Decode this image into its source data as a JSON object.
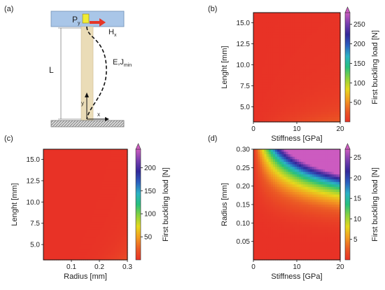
{
  "colormap": [
    "#e83226",
    "#eb5a25",
    "#f39a21",
    "#e6d81d",
    "#8cd23c",
    "#27c07c",
    "#2bb2c4",
    "#2b5fbf",
    "#33289a",
    "#7a3fb0",
    "#cc5bc0"
  ],
  "panel_a": {
    "label": "(a)",
    "force_p": "P",
    "force_p_sub": "y",
    "force_h": "H",
    "force_h_sub": "x",
    "length": "L",
    "modulus": "E,J",
    "modulus_sub": "min",
    "axis_y": "y",
    "axis_x": "x"
  },
  "chart_data": [
    {
      "id": "b",
      "panel_label": "(b)",
      "type": "heatmap",
      "xlabel": "Stiffness [GPa]",
      "ylabel": "Lenght [mm]",
      "colorbar_label": "First buckling load [N]",
      "xlim": [
        0,
        20
      ],
      "ylim": [
        3.2,
        16.2
      ],
      "xticks": [
        "0",
        "10",
        "20"
      ],
      "xtick_values": [
        0,
        10,
        20
      ],
      "yticks": [
        "5.0",
        "7.5",
        "10.0",
        "12.5",
        "15.0"
      ],
      "ytick_values": [
        5,
        7.5,
        10,
        12.5,
        15
      ],
      "cbar_ticks": [
        "50",
        "100",
        "150",
        "200",
        "250"
      ],
      "cbar_tick_values": [
        50,
        100,
        150,
        200,
        250
      ],
      "cbar_range": [
        0,
        280
      ],
      "model": "load = 14.4 * stiffness / length^2 (cap 280)"
    },
    {
      "id": "c",
      "panel_label": "(c)",
      "type": "heatmap",
      "xlabel": "Radius [mm]",
      "ylabel": "Lenght [mm]",
      "colorbar_label": "First buckling load [N]",
      "xlim": [
        0,
        0.3
      ],
      "ylim": [
        3.2,
        16.2
      ],
      "xticks": [
        "0.1",
        "0.2",
        "0.3"
      ],
      "xtick_values": [
        0.1,
        0.2,
        0.3
      ],
      "yticks": [
        "5.0",
        "7.5",
        "10.0",
        "12.5",
        "15.0"
      ],
      "ytick_values": [
        5,
        7.5,
        10,
        12.5,
        15
      ],
      "cbar_ticks": [
        "50",
        "100",
        "150",
        "200"
      ],
      "cbar_tick_values": [
        50,
        100,
        150,
        200
      ],
      "cbar_range": [
        0,
        240
      ],
      "model": "load = 22000 * radius^4 / length^2 (cap 240)"
    },
    {
      "id": "d",
      "panel_label": "(d)",
      "type": "heatmap",
      "xlabel": "Stiffness [GPa]",
      "ylabel": "Radius [mm]",
      "colorbar_label": "First buckling load [N]",
      "xlim": [
        0,
        20
      ],
      "ylim": [
        0,
        0.3
      ],
      "xticks": [
        "0",
        "10",
        "20"
      ],
      "xtick_values": [
        0,
        10,
        20
      ],
      "yticks": [
        "0.05",
        "0.10",
        "0.15",
        "0.20",
        "0.25",
        "0.30"
      ],
      "ytick_values": [
        0.05,
        0.1,
        0.15,
        0.2,
        0.25,
        0.3
      ],
      "cbar_ticks": [
        "5",
        "10",
        "15",
        "20",
        "25"
      ],
      "cbar_tick_values": [
        5,
        10,
        15,
        20,
        25
      ],
      "cbar_range": [
        0,
        27
      ],
      "model": "load = 3.8 * stiffness * (radius/0.3)^4 (cap 27)"
    }
  ]
}
